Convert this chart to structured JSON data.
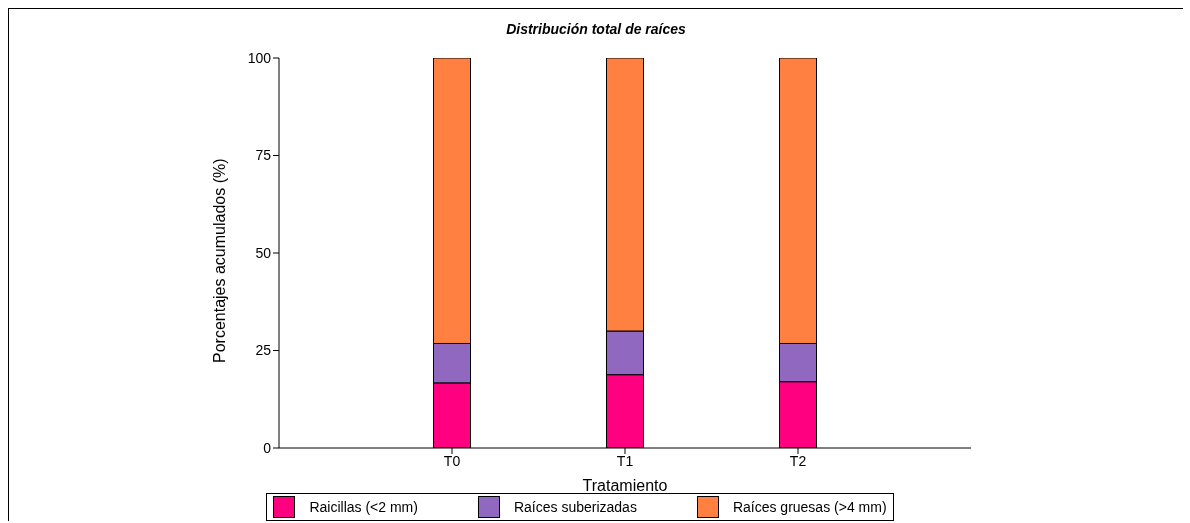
{
  "chart_data": {
    "type": "bar",
    "title": "Distribución total de raíces",
    "xlabel": "Tratamiento",
    "ylabel": "Porcentajes acumulados (%)",
    "categories": [
      "T0",
      "T1",
      "T2"
    ],
    "stacked": true,
    "series": [
      {
        "name": "Raicillas (<2 mm)",
        "color": "#ff0080",
        "values": [
          16.7,
          18.8,
          17.0
        ]
      },
      {
        "name": "Raíces suberizadas",
        "color": "#9168c0",
        "values": [
          10.1,
          11.2,
          9.8
        ]
      },
      {
        "name": "Raíces gruesas (>4 mm)",
        "color": "#ff8040",
        "values": [
          73.2,
          70.0,
          73.2
        ]
      }
    ],
    "ylim": [
      0,
      100
    ],
    "yticks": [
      0,
      25,
      50,
      75,
      100
    ],
    "grid": false,
    "legend": "bottom"
  }
}
